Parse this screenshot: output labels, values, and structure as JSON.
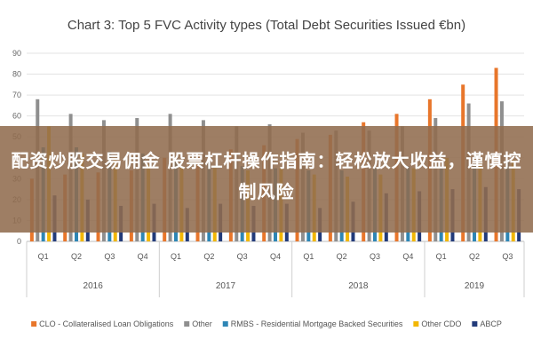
{
  "chart_data": {
    "type": "bar",
    "title": "Chart 3: Top 5 FVC Activity types (Total Debt Securities Issued €bn)",
    "xlabel": "",
    "ylabel": "",
    "ylim": [
      0,
      90
    ],
    "yticks": [
      0,
      10,
      20,
      30,
      40,
      50,
      60,
      70,
      80,
      90
    ],
    "grid": true,
    "legend_position": "bottom",
    "categories": [
      "Q1",
      "Q2",
      "Q3",
      "Q4",
      "Q1",
      "Q2",
      "Q3",
      "Q4",
      "Q1",
      "Q2",
      "Q3",
      "Q4",
      "Q1",
      "Q2",
      "Q3"
    ],
    "years": [
      {
        "label": "2016",
        "quarters": 4
      },
      {
        "label": "2017",
        "quarters": 4
      },
      {
        "label": "2018",
        "quarters": 4
      },
      {
        "label": "2019",
        "quarters": 3
      }
    ],
    "series": [
      {
        "name": "CLO - Collateralised Loan Obligations",
        "color": "#e8762b",
        "values": [
          30,
          32,
          33,
          34,
          40,
          42,
          44,
          46,
          49,
          51,
          57,
          61,
          68,
          75,
          83
        ]
      },
      {
        "name": "Other",
        "color": "#8f8f8f",
        "values": [
          68,
          61,
          58,
          59,
          61,
          58,
          55,
          56,
          52,
          53,
          53,
          55,
          59,
          66,
          67
        ]
      },
      {
        "name": "RMBS - Residential Mortgage Backed Securities",
        "color": "#2e86b5",
        "values": [
          45,
          45,
          43,
          42,
          40,
          38,
          36,
          35,
          34,
          34,
          35,
          36,
          36,
          37,
          38
        ]
      },
      {
        "name": "Other CDO",
        "color": "#f2b705",
        "values": [
          55,
          42,
          40,
          37,
          36,
          35,
          34,
          35,
          32,
          31,
          32,
          35,
          40,
          38,
          39
        ]
      },
      {
        "name": "ABCP",
        "color": "#223b7a",
        "values": [
          22,
          20,
          17,
          18,
          16,
          18,
          17,
          18,
          16,
          19,
          23,
          24,
          25,
          26,
          25
        ]
      }
    ]
  },
  "overlay": {
    "text": "配资炒股交易佣金 股票杠杆操作指南：轻松放大收益，谨慎控制风险"
  }
}
